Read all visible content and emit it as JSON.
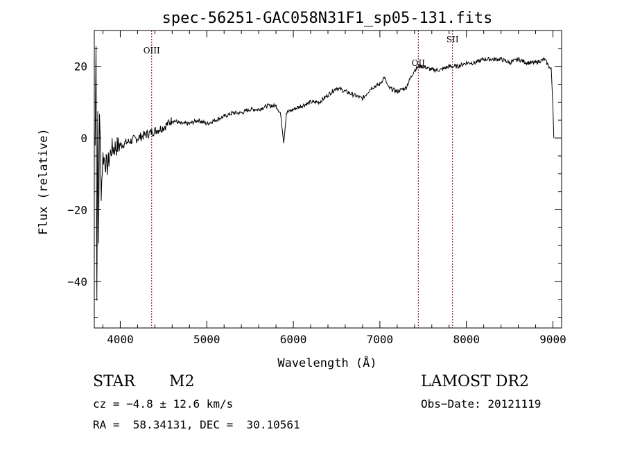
{
  "chart_data": {
    "type": "line",
    "title": "spec-56251-GAC058N31F1_sp05-131.fits",
    "xlabel": "Wavelength (Å)",
    "ylabel": "Flux (relative)",
    "xlim": [
      3700,
      9100
    ],
    "ylim": [
      -53,
      30
    ],
    "xticks": [
      4000,
      5000,
      6000,
      7000,
      8000,
      9000
    ],
    "yticks": [
      -40,
      -20,
      0,
      20
    ],
    "grid": false,
    "line_color": "#000000",
    "marker_color": "#8b0000",
    "series": [
      {
        "x": [
          3710,
          3720,
          3730,
          3740,
          3750,
          3760,
          3780,
          3800,
          3850,
          3900,
          4000,
          4100,
          4200,
          4300,
          4400,
          4500,
          4600,
          4700,
          4800,
          4900,
          5000,
          5100,
          5200,
          5300,
          5400,
          5500,
          5600,
          5700,
          5800,
          5850,
          5890,
          5920,
          6000,
          6100,
          6200,
          6300,
          6400,
          6500,
          6600,
          6700,
          6800,
          6900,
          7000,
          7050,
          7100,
          7200,
          7300,
          7400,
          7450,
          7500,
          7600,
          7700,
          7800,
          7900,
          8000,
          8100,
          8200,
          8300,
          8400,
          8500,
          8600,
          8700,
          8800,
          8900,
          8980,
          9000,
          9010
        ],
        "y": [
          -2,
          28,
          -45,
          10,
          -30,
          8,
          -15,
          -5,
          -8,
          -3,
          -2,
          -1,
          0,
          1,
          2,
          3,
          5,
          4,
          4,
          5,
          4,
          5,
          6,
          7,
          7,
          8,
          8,
          9,
          9,
          7,
          -1,
          7,
          8,
          9,
          10,
          10,
          12,
          14,
          13,
          12,
          11,
          14,
          15,
          17,
          14,
          13,
          14,
          19,
          20,
          20,
          19,
          19,
          20,
          20,
          21,
          21,
          22,
          22,
          22,
          21,
          22,
          21,
          21,
          22,
          19,
          9,
          0
        ]
      }
    ],
    "line_markers": [
      {
        "label": "OIII",
        "x": 4363
      },
      {
        "label": "OII",
        "x": 7444
      },
      {
        "label": "SII",
        "x": 7840
      }
    ]
  },
  "info": {
    "object_class": "STAR",
    "subclass": "M2",
    "survey": "LAMOST DR2",
    "cz": "cz = −4.8 ± 12.6 km/s",
    "obs_date": "Obs−Date: 20121119",
    "coords": "RA =  58.34131, DEC =  30.10561"
  }
}
